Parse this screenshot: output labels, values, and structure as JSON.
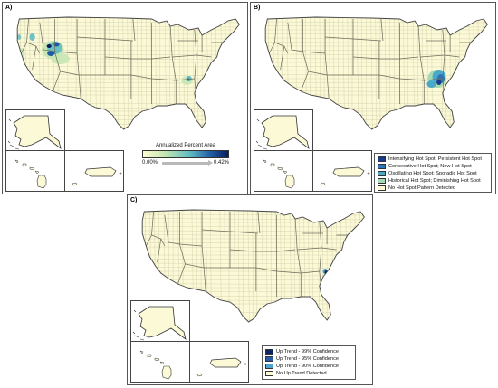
{
  "panels": {
    "a": {
      "label": "A)",
      "legend": {
        "title": "Annualized Percent Area",
        "min_label": "0.00%",
        "max_label": "0.42%",
        "colors": [
          "#fbfcd2",
          "#c6e6b2",
          "#5fbcc2",
          "#1f5aa6",
          "#0a1c5c"
        ]
      }
    },
    "b": {
      "label": "B)",
      "legend": [
        {
          "label": "Intensifying Hot Spot; Persistent Hot Spot",
          "color": "#1a3a8a"
        },
        {
          "label": "Consecutive Hot Spot; New Hot Spot",
          "color": "#2f74b8"
        },
        {
          "label": "Oscillating Hot Spot; Sporadic Hot Spot",
          "color": "#49a9c9"
        },
        {
          "label": "Historical Hot Spot; Diminishing Hot Spot",
          "color": "#a7d9b3"
        },
        {
          "label": "No Hot Spot Pattern Detected",
          "color": "#fbf9d6"
        }
      ]
    },
    "c": {
      "label": "C)",
      "legend": [
        {
          "label": "Up Trend - 99% Confidence",
          "color": "#0d2466"
        },
        {
          "label": "Up Trend - 95% Confidence",
          "color": "#2a5aa8"
        },
        {
          "label": "Up Trend - 90% Confidence",
          "color": "#4fa3cf"
        },
        {
          "label": "No Up Trend Detected",
          "color": "#fbf9d6"
        }
      ]
    }
  },
  "map_style": {
    "land": "#fbf9d6",
    "county_lines": "#c9c6a4",
    "state_lines": "#6b6b5a"
  }
}
